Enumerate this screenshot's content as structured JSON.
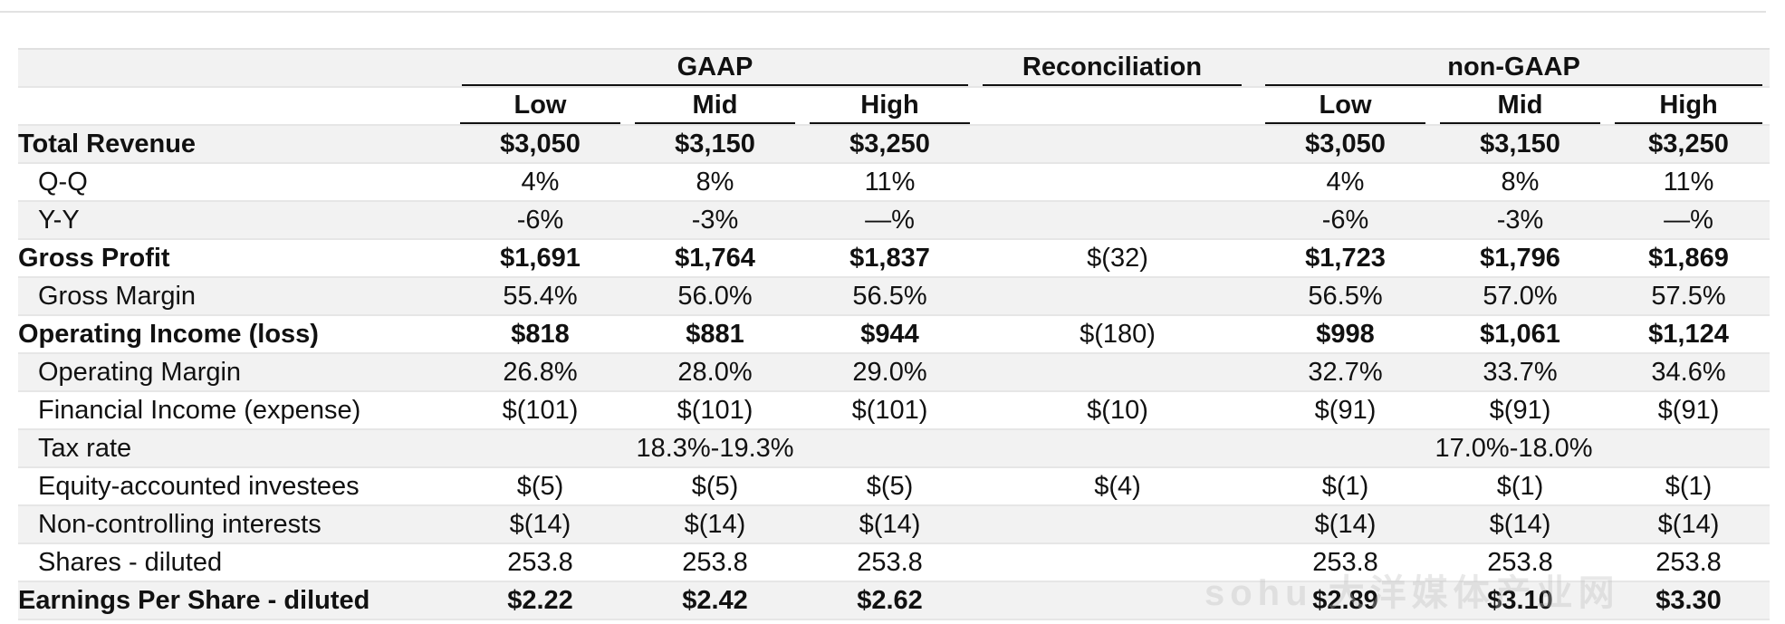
{
  "headers": {
    "gaap": "GAAP",
    "reconciliation": "Reconciliation",
    "non_gaap": "non-GAAP",
    "gaap_cols": [
      "Low",
      "Mid",
      "High"
    ],
    "non_gaap_cols": [
      "Low",
      "Mid",
      "High"
    ]
  },
  "rows": [
    {
      "label": "Total Revenue",
      "gaap": [
        "$3,050",
        "$3,150",
        "$3,250"
      ],
      "recon": "",
      "non_gaap": [
        "$3,050",
        "$3,150",
        "$3,250"
      ]
    },
    {
      "label": "Q-Q",
      "gaap": [
        "4%",
        "8%",
        "11%"
      ],
      "recon": "",
      "non_gaap": [
        "4%",
        "8%",
        "11%"
      ]
    },
    {
      "label": "Y-Y",
      "gaap": [
        "-6%",
        "-3%",
        "—%"
      ],
      "recon": "",
      "non_gaap": [
        "-6%",
        "-3%",
        "—%"
      ]
    },
    {
      "label": "Gross Profit",
      "gaap": [
        "$1,691",
        "$1,764",
        "$1,837"
      ],
      "recon": "$(32)",
      "non_gaap": [
        "$1,723",
        "$1,796",
        "$1,869"
      ]
    },
    {
      "label": "Gross Margin",
      "gaap": [
        "55.4%",
        "56.0%",
        "56.5%"
      ],
      "recon": "",
      "non_gaap": [
        "56.5%",
        "57.0%",
        "57.5%"
      ]
    },
    {
      "label": "Operating Income (loss)",
      "gaap": [
        "$818",
        "$881",
        "$944"
      ],
      "recon": "$(180)",
      "non_gaap": [
        "$998",
        "$1,061",
        "$1,124"
      ]
    },
    {
      "label": "Operating Margin",
      "gaap": [
        "26.8%",
        "28.0%",
        "29.0%"
      ],
      "recon": "",
      "non_gaap": [
        "32.7%",
        "33.7%",
        "34.6%"
      ]
    },
    {
      "label": "Financial Income (expense)",
      "gaap": [
        "$(101)",
        "$(101)",
        "$(101)"
      ],
      "recon": "$(10)",
      "non_gaap": [
        "$(91)",
        "$(91)",
        "$(91)"
      ]
    },
    {
      "label": "Tax rate",
      "gaap_range": "18.3%-19.3%",
      "recon": "",
      "non_gaap_range": "17.0%-18.0%"
    },
    {
      "label": "Equity-accounted investees",
      "gaap": [
        "$(5)",
        "$(5)",
        "$(5)"
      ],
      "recon": "$(4)",
      "non_gaap": [
        "$(1)",
        "$(1)",
        "$(1)"
      ]
    },
    {
      "label": "Non-controlling interests",
      "gaap": [
        "$(14)",
        "$(14)",
        "$(14)"
      ],
      "recon": "",
      "non_gaap": [
        "$(14)",
        "$(14)",
        "$(14)"
      ]
    },
    {
      "label": "Shares - diluted",
      "gaap": [
        "253.8",
        "253.8",
        "253.8"
      ],
      "recon": "",
      "non_gaap": [
        "253.8",
        "253.8",
        "253.8"
      ]
    },
    {
      "label": "Earnings Per Share - diluted",
      "gaap": [
        "$2.22",
        "$2.42",
        "$2.62"
      ],
      "recon": "",
      "non_gaap": [
        "$2.89",
        "$3.10",
        "$3.30"
      ]
    }
  ],
  "watermark": "sohu 大洋媒体产业网"
}
